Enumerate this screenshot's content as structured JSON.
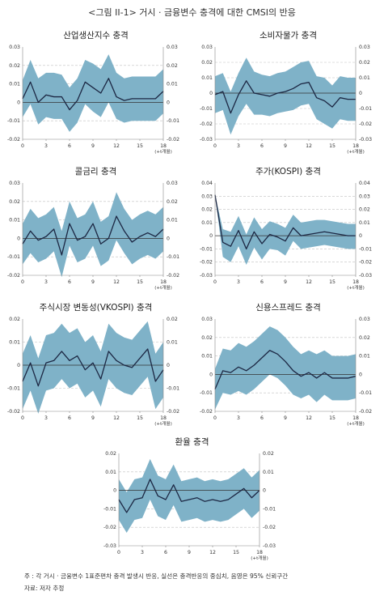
{
  "figure_title": "<그림 II-1> 거시 · 금융변수 충격에 대한 CMSI의 반응",
  "note": "주   : 각 거시 · 금융변수 1표준편차 충격 발생시 반응, 실선은 충격반응의 중심치, 음영은 95% 신뢰구간",
  "source": "자료: 저자 추정",
  "colors": {
    "band": "#7fb2c8",
    "line": "#1c2743",
    "grid": "#c0c0c0",
    "axis": "#888888"
  },
  "chart_data": [
    {
      "type": "area",
      "title": "산업생산지수 충격",
      "x": [
        0,
        1,
        2,
        3,
        4,
        5,
        6,
        7,
        8,
        9,
        10,
        11,
        12,
        13,
        14,
        15,
        16,
        17,
        18
      ],
      "xticks": [
        "0",
        "3",
        "6",
        "9",
        "12",
        "15",
        "18"
      ],
      "xunit": "(+t개월)",
      "ylim": [
        -0.02,
        0.03
      ],
      "yticks": [
        "0.03",
        "0.02",
        "0.01",
        "0",
        "-0.01",
        "-0.02"
      ],
      "center": [
        0.002,
        0.011,
        0.0,
        0.004,
        0.003,
        0.003,
        -0.004,
        0.001,
        0.011,
        0.008,
        0.005,
        0.013,
        0.003,
        0.001,
        0.002,
        0.002,
        0.002,
        0.002,
        0.006
      ],
      "upper": [
        0.012,
        0.023,
        0.013,
        0.016,
        0.016,
        0.015,
        0.008,
        0.013,
        0.023,
        0.021,
        0.018,
        0.026,
        0.016,
        0.013,
        0.014,
        0.014,
        0.014,
        0.014,
        0.018
      ],
      "lower": [
        -0.008,
        -0.001,
        -0.012,
        -0.008,
        -0.009,
        -0.009,
        -0.016,
        -0.011,
        -0.001,
        -0.005,
        -0.008,
        0.0,
        -0.009,
        -0.011,
        -0.01,
        -0.01,
        -0.01,
        -0.01,
        -0.006
      ]
    },
    {
      "type": "area",
      "title": "소비자물가 충격",
      "x": [
        0,
        1,
        2,
        3,
        4,
        5,
        6,
        7,
        8,
        9,
        10,
        11,
        12,
        13,
        14,
        15,
        16,
        17,
        18
      ],
      "xticks": [
        "0",
        "3",
        "6",
        "9",
        "12",
        "15",
        "18"
      ],
      "xunit": "(+t개월)",
      "ylim": [
        -0.03,
        0.03
      ],
      "yticks": [
        "0.03",
        "0.02",
        "0.01",
        "0",
        "-0.01",
        "-0.02",
        "-0.03"
      ],
      "center": [
        -0.001,
        0.001,
        -0.013,
        -0.001,
        0.008,
        0.0,
        -0.001,
        -0.002,
        0.0,
        0.001,
        0.003,
        0.006,
        0.007,
        -0.003,
        -0.005,
        -0.009,
        -0.003,
        -0.004,
        -0.004
      ],
      "upper": [
        0.011,
        0.013,
        0.001,
        0.013,
        0.023,
        0.014,
        0.012,
        0.011,
        0.013,
        0.014,
        0.017,
        0.02,
        0.021,
        0.011,
        0.01,
        0.005,
        0.011,
        0.01,
        0.01
      ],
      "lower": [
        -0.013,
        -0.011,
        -0.027,
        -0.015,
        -0.007,
        -0.014,
        -0.014,
        -0.015,
        -0.013,
        -0.012,
        -0.011,
        -0.008,
        -0.007,
        -0.017,
        -0.02,
        -0.023,
        -0.017,
        -0.018,
        -0.018
      ]
    },
    {
      "type": "area",
      "title": "콜금리 충격",
      "x": [
        0,
        1,
        2,
        3,
        4,
        5,
        6,
        7,
        8,
        9,
        10,
        11,
        12,
        13,
        14,
        15,
        16,
        17,
        18
      ],
      "xticks": [
        "0",
        "3",
        "6",
        "9",
        "12",
        "15",
        "18"
      ],
      "xunit": "(+t개월)",
      "ylim": [
        -0.02,
        0.03
      ],
      "yticks": [
        "0.03",
        "0.02",
        "0.01",
        "0",
        "-0.01",
        "-0.02"
      ],
      "center": [
        -0.003,
        0.004,
        -0.001,
        0.001,
        0.005,
        -0.009,
        0.008,
        -0.001,
        0.001,
        0.008,
        -0.003,
        0.0,
        0.012,
        0.004,
        -0.002,
        0.001,
        0.003,
        0.001,
        0.005
      ],
      "upper": [
        0.008,
        0.016,
        0.011,
        0.013,
        0.017,
        0.004,
        0.02,
        0.011,
        0.013,
        0.02,
        0.009,
        0.012,
        0.025,
        0.016,
        0.01,
        0.013,
        0.015,
        0.013,
        0.017
      ],
      "lower": [
        -0.014,
        -0.008,
        -0.013,
        -0.011,
        -0.007,
        -0.021,
        -0.004,
        -0.013,
        -0.011,
        -0.004,
        -0.015,
        -0.012,
        -0.001,
        -0.008,
        -0.014,
        -0.011,
        -0.009,
        -0.011,
        -0.007
      ]
    },
    {
      "type": "area",
      "title": "주가(KOSPI) 충격",
      "x": [
        0,
        1,
        2,
        3,
        4,
        5,
        6,
        7,
        8,
        9,
        10,
        11,
        12,
        13,
        14,
        15,
        16,
        17,
        18
      ],
      "xticks": [
        "0",
        "3",
        "6",
        "9",
        "12",
        "15",
        "18"
      ],
      "xunit": "(+t개월)",
      "ylim": [
        -0.03,
        0.04
      ],
      "yticks": [
        "0.04",
        "0.03",
        "0.02",
        "0.01",
        "0",
        "-0.01",
        "-0.02",
        "-0.03"
      ],
      "center": [
        0.031,
        -0.005,
        -0.008,
        0.004,
        -0.01,
        0.003,
        -0.006,
        0.001,
        -0.001,
        -0.004,
        0.006,
        0.0,
        0.001,
        0.002,
        0.003,
        0.002,
        0.001,
        0.0,
        0.0
      ],
      "upper": [
        0.031,
        0.005,
        0.003,
        0.015,
        0.001,
        0.014,
        0.005,
        0.011,
        0.009,
        0.006,
        0.016,
        0.01,
        0.011,
        0.012,
        0.012,
        0.011,
        0.01,
        0.009,
        0.009
      ],
      "lower": [
        0.031,
        -0.016,
        -0.02,
        -0.008,
        -0.022,
        -0.009,
        -0.018,
        -0.01,
        -0.011,
        -0.015,
        -0.004,
        -0.01,
        -0.009,
        -0.008,
        -0.007,
        -0.008,
        -0.009,
        -0.01,
        -0.01
      ]
    },
    {
      "type": "area",
      "title": "주식시장 변동성(VKOSPI) 충격",
      "x": [
        0,
        1,
        2,
        3,
        4,
        5,
        6,
        7,
        8,
        9,
        10,
        11,
        12,
        13,
        14,
        15,
        16,
        17,
        18
      ],
      "xticks": [
        "0",
        "3",
        "6",
        "9",
        "12",
        "15",
        "18"
      ],
      "xunit": "(+t개월)",
      "ylim": [
        -0.02,
        0.02
      ],
      "yticks": [
        "0.02",
        "0.01",
        "0",
        "-0.01",
        "-0.02"
      ],
      "center": [
        -0.007,
        0.001,
        -0.009,
        0.001,
        0.002,
        0.006,
        0.002,
        0.004,
        -0.002,
        0.001,
        -0.006,
        0.006,
        0.002,
        0.0,
        -0.001,
        0.003,
        0.007,
        -0.007,
        -0.002
      ],
      "upper": [
        0.005,
        0.013,
        0.003,
        0.013,
        0.014,
        0.018,
        0.014,
        0.016,
        0.01,
        0.013,
        0.006,
        0.018,
        0.014,
        0.012,
        0.011,
        0.015,
        0.019,
        0.005,
        0.01
      ],
      "lower": [
        -0.019,
        -0.011,
        -0.021,
        -0.011,
        -0.01,
        -0.006,
        -0.01,
        -0.008,
        -0.014,
        -0.011,
        -0.018,
        -0.006,
        -0.01,
        -0.012,
        -0.013,
        -0.009,
        -0.005,
        -0.019,
        -0.014
      ]
    },
    {
      "type": "area",
      "title": "신용스프레드 충격",
      "x": [
        0,
        1,
        2,
        3,
        4,
        5,
        6,
        7,
        8,
        9,
        10,
        11,
        12,
        13,
        14,
        15,
        16,
        17,
        18
      ],
      "xticks": [
        "0",
        "3",
        "6",
        "9",
        "12",
        "15",
        "18"
      ],
      "xunit": "(+t개월)",
      "ylim": [
        -0.02,
        0.03
      ],
      "yticks": [
        "0.03",
        "0.02",
        "0.01",
        "0",
        "-0.01",
        "-0.02"
      ],
      "center": [
        -0.008,
        0.002,
        0.001,
        0.004,
        0.002,
        0.005,
        0.009,
        0.013,
        0.011,
        0.007,
        0.002,
        -0.001,
        0.001,
        -0.002,
        0.001,
        -0.002,
        -0.002,
        -0.002,
        -0.001
      ],
      "upper": [
        0.003,
        0.014,
        0.013,
        0.017,
        0.015,
        0.018,
        0.022,
        0.026,
        0.024,
        0.02,
        0.015,
        0.011,
        0.013,
        0.011,
        0.013,
        0.01,
        0.01,
        0.01,
        0.011
      ],
      "lower": [
        -0.019,
        -0.01,
        -0.011,
        -0.009,
        -0.011,
        -0.008,
        -0.004,
        0.0,
        -0.002,
        -0.006,
        -0.011,
        -0.013,
        -0.011,
        -0.015,
        -0.011,
        -0.014,
        -0.014,
        -0.014,
        -0.013
      ]
    },
    {
      "type": "area",
      "title": "환율 충격",
      "x": [
        0,
        1,
        2,
        3,
        4,
        5,
        6,
        7,
        8,
        9,
        10,
        11,
        12,
        13,
        14,
        15,
        16,
        17,
        18
      ],
      "xticks": [
        "0",
        "3",
        "6",
        "9",
        "12",
        "15",
        "18"
      ],
      "xunit": "(+t개월)",
      "ylim": [
        -0.03,
        0.02
      ],
      "yticks": [
        "0.02",
        "0.01",
        "0",
        "-0.01",
        "-0.02",
        "-0.03"
      ],
      "center": [
        -0.005,
        -0.012,
        -0.005,
        -0.004,
        0.006,
        -0.003,
        -0.005,
        0.003,
        -0.006,
        -0.005,
        -0.004,
        -0.006,
        -0.005,
        -0.006,
        -0.005,
        -0.002,
        0.001,
        -0.004,
        0.0
      ],
      "upper": [
        0.006,
        -0.001,
        0.006,
        0.007,
        0.017,
        0.008,
        0.006,
        0.014,
        0.005,
        0.006,
        0.007,
        0.005,
        0.006,
        0.005,
        0.006,
        0.009,
        0.012,
        0.007,
        0.011
      ],
      "lower": [
        -0.016,
        -0.023,
        -0.016,
        -0.015,
        -0.005,
        -0.014,
        -0.016,
        -0.008,
        -0.017,
        -0.016,
        -0.015,
        -0.017,
        -0.016,
        -0.017,
        -0.016,
        -0.013,
        -0.01,
        -0.015,
        -0.011
      ]
    }
  ]
}
